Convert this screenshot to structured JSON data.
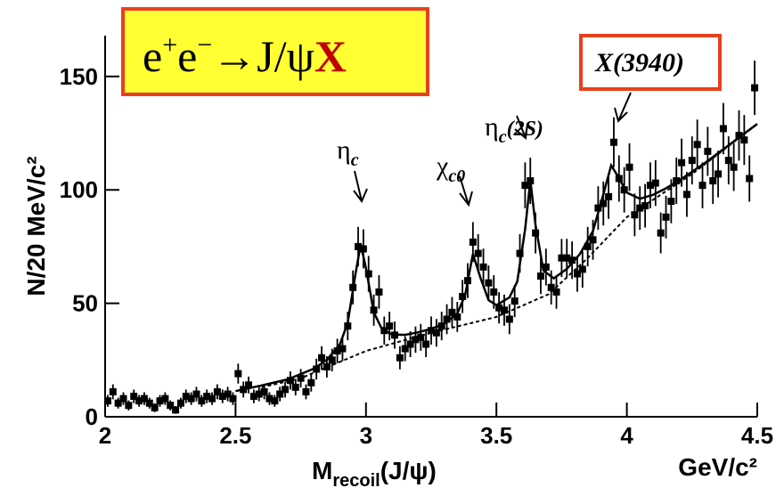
{
  "chart_data": {
    "type": "scatter",
    "title": {
      "e": "e",
      "plus": "+",
      "e2": "e",
      "minus": "−",
      "arrow": "→J/ψ",
      "X": "X"
    },
    "title_x_color": "#c00000",
    "y_label": "N/20 MeV/c²",
    "x_label": {
      "main": "M",
      "sub": "recoil",
      "rest": "(J/ψ)"
    },
    "x_unit": "GeV/c²",
    "annotations": [
      {
        "symbol": "η",
        "sub": "c"
      },
      {
        "symbol": "χ",
        "sub": "c0"
      },
      {
        "symbol": "η",
        "sub": "c",
        "suffix": "(2S)"
      },
      {
        "symbol": "X(3940)"
      }
    ],
    "xlim": [
      2,
      4.5
    ],
    "ylim": [
      0,
      168
    ],
    "xticks": [
      2,
      2.5,
      3,
      3.5,
      4,
      4.5
    ],
    "yticks": [
      0,
      50,
      100,
      150
    ],
    "series": [
      {
        "type": "errorbar",
        "color": "#000000",
        "x": [
          2.01,
          2.03,
          2.05,
          2.07,
          2.09,
          2.11,
          2.13,
          2.15,
          2.17,
          2.19,
          2.21,
          2.23,
          2.25,
          2.27,
          2.29,
          2.31,
          2.33,
          2.35,
          2.37,
          2.39,
          2.41,
          2.43,
          2.45,
          2.47,
          2.49,
          2.51,
          2.53,
          2.55,
          2.57,
          2.59,
          2.61,
          2.63,
          2.65,
          2.67,
          2.69,
          2.71,
          2.73,
          2.75,
          2.77,
          2.79,
          2.81,
          2.83,
          2.85,
          2.87,
          2.89,
          2.91,
          2.93,
          2.95,
          2.97,
          2.99,
          3.01,
          3.03,
          3.05,
          3.07,
          3.09,
          3.11,
          3.13,
          3.15,
          3.17,
          3.19,
          3.21,
          3.23,
          3.25,
          3.27,
          3.29,
          3.31,
          3.33,
          3.35,
          3.37,
          3.39,
          3.41,
          3.43,
          3.45,
          3.47,
          3.49,
          3.51,
          3.53,
          3.55,
          3.57,
          3.59,
          3.61,
          3.63,
          3.65,
          3.67,
          3.69,
          3.71,
          3.73,
          3.75,
          3.77,
          3.79,
          3.81,
          3.83,
          3.85,
          3.87,
          3.89,
          3.91,
          3.93,
          3.95,
          3.97,
          3.99,
          4.01,
          4.03,
          4.05,
          4.07,
          4.09,
          4.11,
          4.13,
          4.15,
          4.17,
          4.19,
          4.21,
          4.23,
          4.25,
          4.27,
          4.29,
          4.31,
          4.33,
          4.35,
          4.37,
          4.39,
          4.41,
          4.43,
          4.45,
          4.47,
          4.49
        ],
        "values": [
          7,
          11,
          6,
          8,
          5,
          9,
          7,
          8,
          6,
          4,
          7,
          8,
          5,
          3,
          6,
          9,
          8,
          10,
          7,
          9,
          8,
          11,
          9,
          10,
          8,
          19,
          12,
          14,
          9,
          10,
          11,
          8,
          7,
          10,
          12,
          16,
          13,
          17,
          11,
          15,
          21,
          26,
          22,
          25,
          29,
          30,
          40,
          57,
          75,
          74,
          63,
          47,
          55,
          38,
          40,
          36,
          26,
          30,
          32,
          34,
          35,
          32,
          38,
          37,
          40,
          43,
          46,
          44,
          53,
          60,
          77,
          72,
          66,
          59,
          55,
          48,
          47,
          43,
          51,
          72,
          102,
          104,
          81,
          62,
          66,
          57,
          55,
          70,
          70,
          69,
          63,
          65,
          75,
          78,
          92,
          94,
          97,
          121,
          105,
          100,
          110,
          89,
          92,
          93,
          102,
          103,
          81,
          88,
          95,
          104,
          112,
          98,
          113,
          120,
          102,
          117,
          104,
          107,
          127,
          113,
          110,
          124,
          122,
          105,
          145
        ],
        "errors": [
          2.6,
          3.3,
          2.4,
          2.8,
          2.2,
          3,
          2.6,
          2.8,
          2.4,
          2,
          2.6,
          2.8,
          2.2,
          1.7,
          2.4,
          3,
          2.8,
          3.2,
          2.6,
          3,
          2.8,
          3.3,
          3,
          3.2,
          2.8,
          4.4,
          3.5,
          3.7,
          3,
          3.2,
          3.3,
          2.8,
          2.6,
          3.2,
          3.5,
          4,
          3.6,
          4.1,
          3.3,
          3.9,
          4.6,
          5.1,
          4.7,
          5,
          5.4,
          5.5,
          6.3,
          7.5,
          8.7,
          8.6,
          7.9,
          6.9,
          7.4,
          6.2,
          6.3,
          6,
          5.1,
          5.5,
          5.7,
          5.8,
          5.9,
          5.7,
          6.2,
          6.1,
          6.3,
          6.6,
          6.8,
          6.6,
          7.3,
          7.7,
          8.8,
          8.5,
          8.1,
          7.7,
          7.4,
          6.9,
          6.9,
          6.6,
          7.1,
          8.5,
          10.1,
          10.2,
          9,
          7.9,
          8.1,
          7.5,
          7.4,
          8.4,
          8.4,
          8.3,
          7.9,
          8.1,
          8.7,
          8.8,
          9.6,
          9.7,
          9.8,
          11,
          10.2,
          10,
          10.5,
          9.4,
          9.6,
          9.6,
          10.1,
          10.1,
          9,
          9.4,
          9.7,
          10.2,
          10.6,
          9.9,
          10.6,
          11,
          10.1,
          10.8,
          10.2,
          10.3,
          11.3,
          10.6,
          10.5,
          11.1,
          11,
          10.2,
          12
        ]
      },
      {
        "type": "line",
        "color": "#000000",
        "dash": false,
        "x": [
          2.5,
          2.6,
          2.7,
          2.8,
          2.85,
          2.9,
          2.93,
          2.96,
          2.98,
          3.0,
          3.03,
          3.06,
          3.1,
          3.15,
          3.2,
          3.25,
          3.3,
          3.35,
          3.38,
          3.41,
          3.44,
          3.47,
          3.5,
          3.55,
          3.58,
          3.61,
          3.63,
          3.65,
          3.68,
          3.72,
          3.77,
          3.82,
          3.87,
          3.91,
          3.94,
          3.97,
          4.0,
          4.05,
          4.1,
          4.15,
          4.2,
          4.3,
          4.4,
          4.5
        ],
        "values": [
          11.3,
          13.8,
          16.5,
          21.2,
          25.1,
          31.9,
          41.4,
          63.2,
          76,
          65.4,
          46,
          38.9,
          36.2,
          36.1,
          37.2,
          38.8,
          40.9,
          45.5,
          53.7,
          71.7,
          60.9,
          51.4,
          49.2,
          52.6,
          59.6,
          82.6,
          104.2,
          84.5,
          64.5,
          61,
          65.2,
          71.7,
          81.8,
          98,
          110.8,
          105.2,
          98.8,
          96.1,
          97.8,
          100.7,
          104.1,
          111.9,
          120.5,
          129.1
        ]
      },
      {
        "type": "line",
        "color": "#000000",
        "dash": true,
        "x": [
          2.6,
          2.75,
          3.0,
          3.25,
          3.5,
          3.7,
          3.85,
          4.0,
          4.25,
          4.5
        ],
        "values": [
          13,
          17,
          29,
          37,
          44,
          54,
          70,
          88,
          107,
          129
        ]
      }
    ]
  }
}
